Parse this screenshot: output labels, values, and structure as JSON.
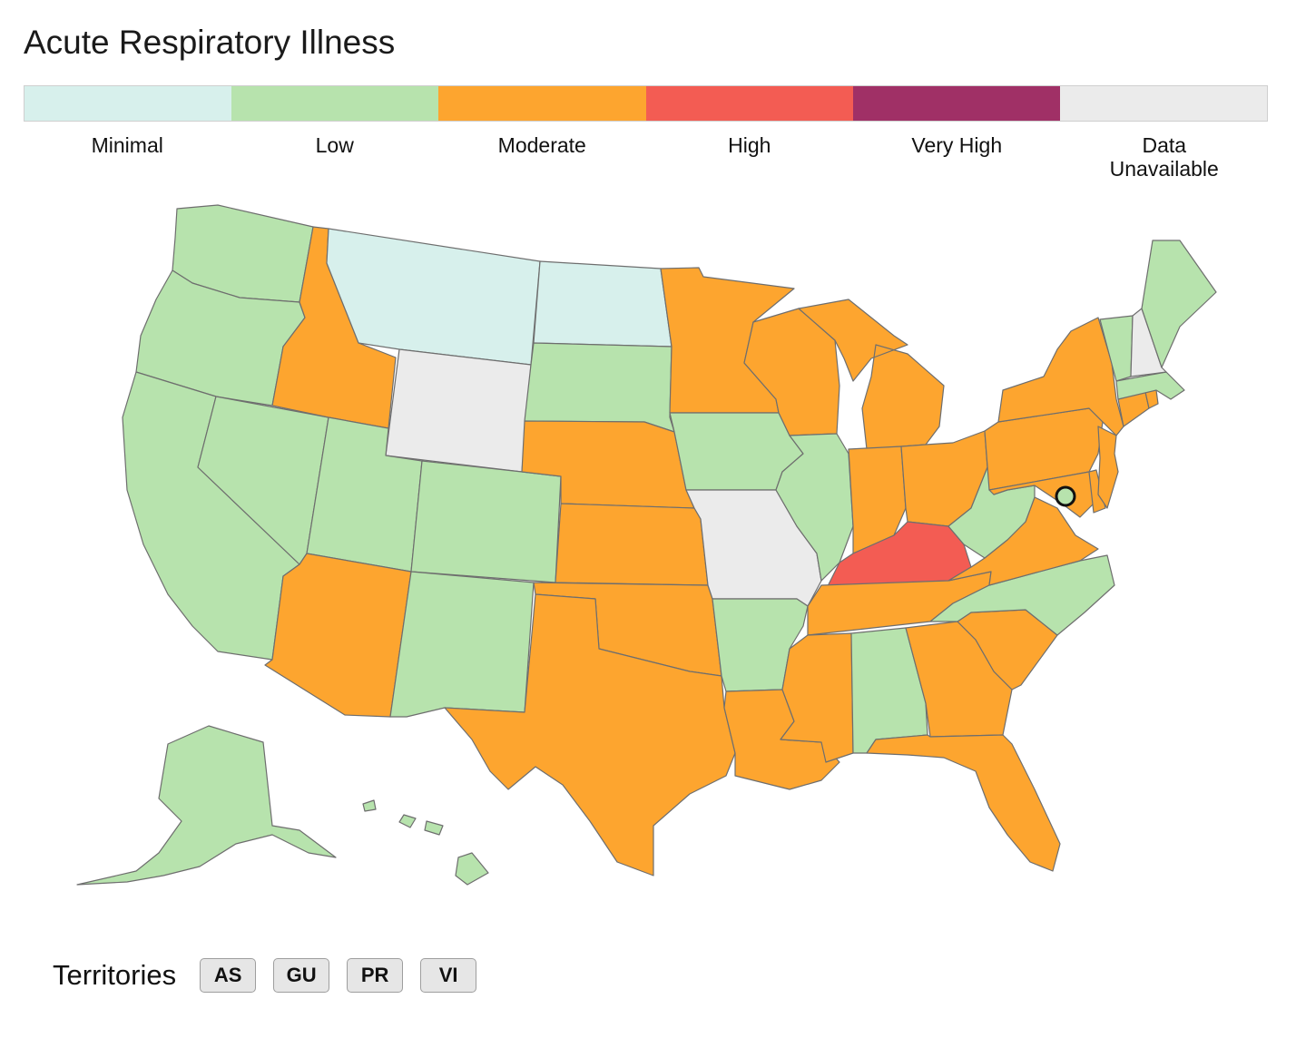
{
  "title": "Acute Respiratory Illness",
  "legend": [
    {
      "label": "Minimal",
      "color": "#d7f0ec"
    },
    {
      "label": "Low",
      "color": "#b7e3ad"
    },
    {
      "label": "Moderate",
      "color": "#fda52f"
    },
    {
      "label": "High",
      "color": "#f35c53"
    },
    {
      "label": "Very High",
      "color": "#a03066"
    },
    {
      "label": "Data\nUnavailable",
      "color": "#ebebeb"
    }
  ],
  "state_levels": {
    "WA": "Low",
    "OR": "Low",
    "CA": "Low",
    "NV": "Low",
    "ID": "Moderate",
    "MT": "Minimal",
    "WY": "Data Unavailable",
    "UT": "Low",
    "AZ": "Moderate",
    "CO": "Low",
    "NM": "Low",
    "ND": "Minimal",
    "SD": "Low",
    "NE": "Moderate",
    "KS": "Moderate",
    "OK": "Moderate",
    "TX": "Moderate",
    "MN": "Moderate",
    "IA": "Low",
    "MO": "Data Unavailable",
    "AR": "Low",
    "LA": "Moderate",
    "WI": "Moderate",
    "IL": "Low",
    "MI": "Moderate",
    "IN": "Moderate",
    "OH": "Moderate",
    "KY": "High",
    "TN": "Moderate",
    "MS": "Moderate",
    "AL": "Low",
    "GA": "Moderate",
    "FL": "Moderate",
    "SC": "Moderate",
    "NC": "Low",
    "VA": "Moderate",
    "WV": "Low",
    "PA": "Moderate",
    "NY": "Moderate",
    "NJ": "Moderate",
    "DE": "Moderate",
    "MD": "Moderate",
    "DC": "Low",
    "CT": "Moderate",
    "RI": "Moderate",
    "MA": "Low",
    "VT": "Low",
    "NH": "Data Unavailable",
    "ME": "Low",
    "AK": "Low",
    "HI": "Low"
  },
  "territories": {
    "label": "Territories",
    "buttons": [
      "AS",
      "GU",
      "PR",
      "VI"
    ]
  }
}
